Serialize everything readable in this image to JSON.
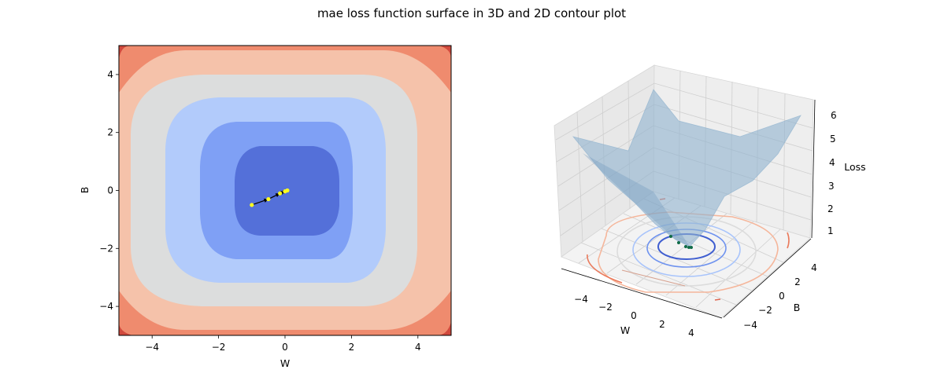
{
  "figure": {
    "title": "mae loss function surface in 3D and 2D contour plot"
  },
  "chart_data": [
    {
      "type": "contour",
      "xlabel": "W",
      "ylabel": "B",
      "xlim": [
        -5,
        5
      ],
      "ylim": [
        -5,
        5
      ],
      "xticks": [
        "−4",
        "−2",
        "0",
        "2",
        "4"
      ],
      "yticks": [
        "−4",
        "−2",
        "0",
        "2",
        "4"
      ],
      "colormap": "coolwarm",
      "level_colors": [
        "#5470d9",
        "#7fa0f5",
        "#b2cbfb",
        "#dcdddd",
        "#f5c2aa",
        "#ef8b6e",
        "#d1493d"
      ],
      "path": {
        "color": "#ffff1f",
        "arrow_color": "#000000",
        "points": [
          [
            -1.0,
            -0.5
          ],
          [
            -0.5,
            -0.3
          ],
          [
            -0.15,
            -0.1
          ],
          [
            0.0,
            -0.03
          ],
          [
            0.07,
            0.0
          ]
        ]
      }
    },
    {
      "type": "surface3d",
      "xlabel": "W",
      "ylabel": "B",
      "zlabel": "Loss",
      "xticks": [
        "−4",
        "−2",
        "0",
        "2",
        "4"
      ],
      "yticks": [
        "−4",
        "−2",
        "0",
        "2",
        "4"
      ],
      "zticks": [
        "1",
        "2",
        "3",
        "4",
        "5",
        "6"
      ],
      "surface_color": "#8fb2cf",
      "path_color": "#0f6b47"
    }
  ]
}
